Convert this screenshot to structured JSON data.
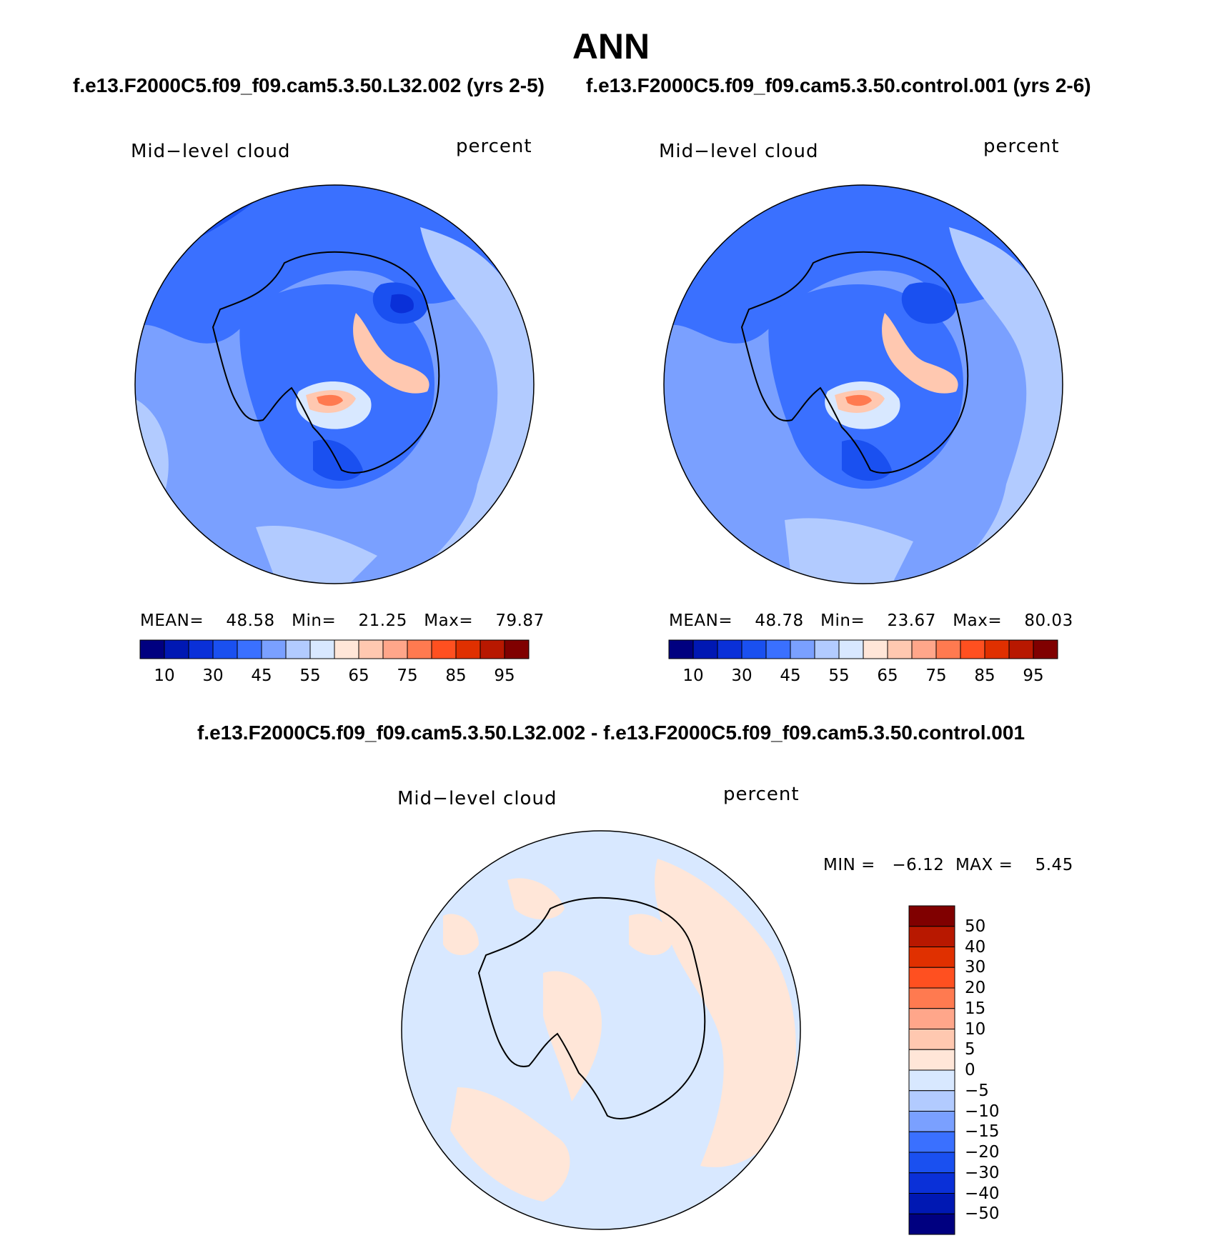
{
  "page_title": "ANN",
  "panels": [
    {
      "case_title": "f.e13.F2000C5.f09_f09.cam5.3.50.L32.002 (yrs 2-5)",
      "variable": "Mid−level cloud",
      "units": "percent",
      "stats": {
        "mean_label": "MEAN=",
        "mean": "48.58",
        "min_label": "Min=",
        "min": "21.25",
        "max_label": "Max=",
        "max": "79.87"
      }
    },
    {
      "case_title": "f.e13.F2000C5.f09_f09.cam5.3.50.control.001 (yrs 2-6)",
      "variable": "Mid−level cloud",
      "units": "percent",
      "stats": {
        "mean_label": "MEAN=",
        "mean": "48.78",
        "min_label": "Min=",
        "min": "23.67",
        "max_label": "Max=",
        "max": "80.03"
      }
    }
  ],
  "colorbar": {
    "ticks": [
      "10",
      "30",
      "45",
      "55",
      "65",
      "75",
      "85",
      "95"
    ],
    "colors": [
      "#000080",
      "#0018b3",
      "#0a30d8",
      "#1a50f0",
      "#3a70ff",
      "#7aa0ff",
      "#b2cbff",
      "#d8e8ff",
      "#ffe6d8",
      "#ffc8b0",
      "#ffa68a",
      "#ff7a50",
      "#ff5020",
      "#e03000",
      "#b81800",
      "#800000"
    ]
  },
  "diff": {
    "title": "f.e13.F2000C5.f09_f09.cam5.3.50.L32.002 - f.e13.F2000C5.f09_f09.cam5.3.50.control.001",
    "variable": "Mid−level cloud",
    "units": "percent",
    "minmax": "MIN =   −6.12  MAX =    5.45",
    "colorbar_ticks": [
      "50",
      "40",
      "30",
      "20",
      "15",
      "10",
      "5",
      "0",
      "−5",
      "−10",
      "−15",
      "−20",
      "−30",
      "−40",
      "−50"
    ],
    "colorbar_colors": [
      "#800000",
      "#b81800",
      "#e03000",
      "#ff5020",
      "#ff7a50",
      "#ffa68a",
      "#ffc8b0",
      "#ffe6d8",
      "#d8e8ff",
      "#b2cbff",
      "#7aa0ff",
      "#3a70ff",
      "#1a50f0",
      "#0a30d8",
      "#0018b3",
      "#000080"
    ]
  },
  "chart_data": {
    "type": "heatmap",
    "map_projection": "polar-stereographic-south",
    "panels": [
      {
        "case": "f.e13.F2000C5.f09_f09.cam5.3.50.L32.002 (yrs 2-5)",
        "mean": 48.58,
        "min": 21.25,
        "max": 79.87
      },
      {
        "case": "f.e13.F2000C5.f09_f09.cam5.3.50.control.001 (yrs 2-6)",
        "mean": 48.78,
        "min": 23.67,
        "max": 80.03
      },
      {
        "case": "difference",
        "min": -6.12,
        "max": 5.45
      }
    ],
    "colorbar_levels": [
      10,
      30,
      45,
      55,
      65,
      75,
      85,
      95
    ],
    "diff_levels": [
      -50,
      -40,
      -30,
      -20,
      -15,
      -10,
      -5,
      0,
      5,
      10,
      15,
      20,
      30,
      40,
      50
    ]
  }
}
